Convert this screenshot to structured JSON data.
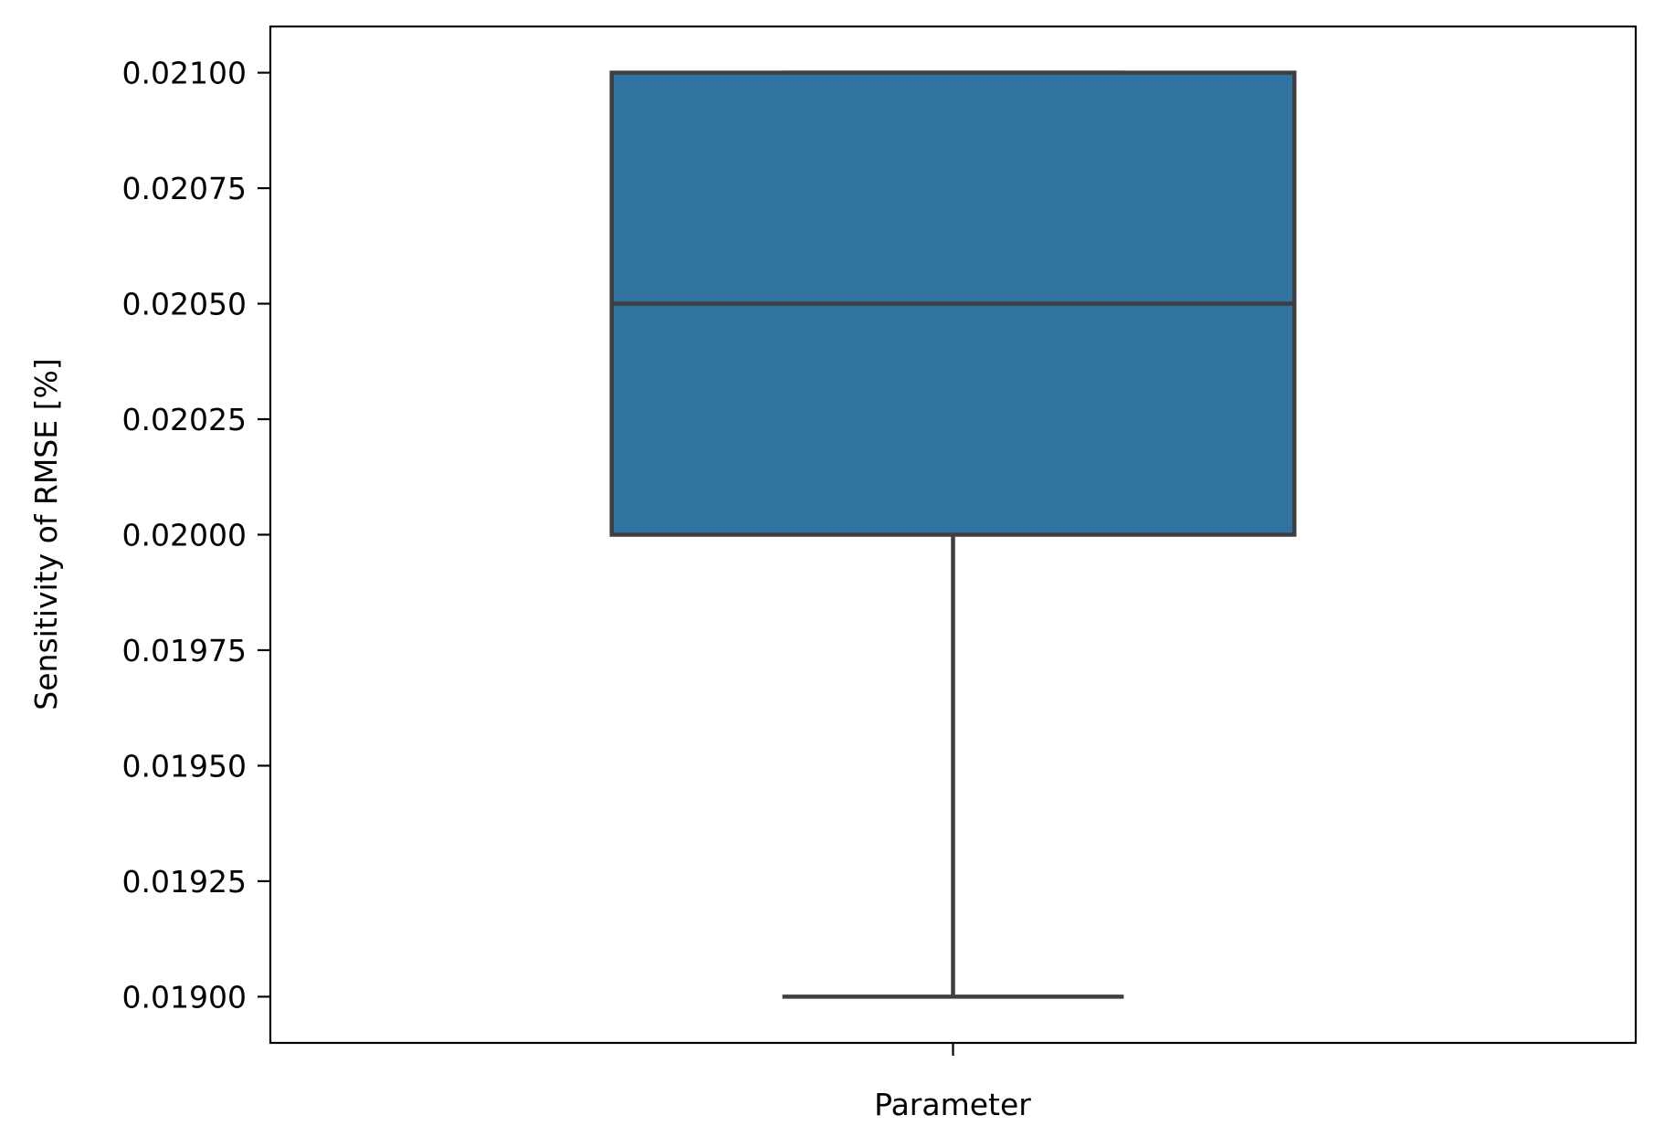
{
  "chart_data": {
    "type": "box",
    "title": "",
    "xlabel": "Parameter",
    "ylabel": "Sensitivity of RMSE [%]",
    "ylim": [
      0.0189,
      0.0211
    ],
    "yticks": [
      {
        "value": 0.019,
        "label": "0.01900"
      },
      {
        "value": 0.01925,
        "label": "0.01925"
      },
      {
        "value": 0.0195,
        "label": "0.01950"
      },
      {
        "value": 0.01975,
        "label": "0.01975"
      },
      {
        "value": 0.02,
        "label": "0.02000"
      },
      {
        "value": 0.02025,
        "label": "0.02025"
      },
      {
        "value": 0.0205,
        "label": "0.02050"
      },
      {
        "value": 0.02075,
        "label": "0.02075"
      },
      {
        "value": 0.021,
        "label": "0.02100"
      }
    ],
    "grid": false,
    "boxes": [
      {
        "whisker_low": 0.019,
        "q1": 0.02,
        "median": 0.0205,
        "q3": 0.021,
        "whisker_high": 0.021
      }
    ],
    "colors": {
      "box_fill": "#3274a1",
      "box_edge": "#3f3f3f",
      "axes": "#000000",
      "background": "#ffffff"
    }
  }
}
